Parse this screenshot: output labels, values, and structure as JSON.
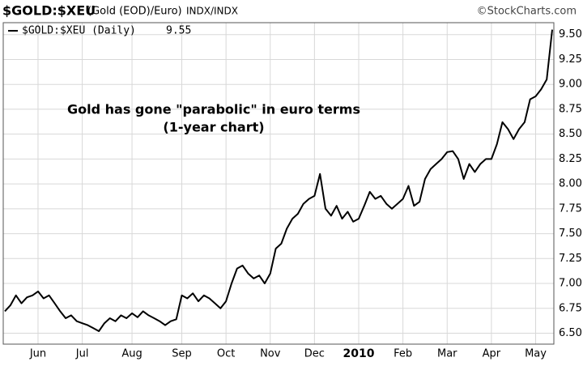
{
  "chart_data": {
    "type": "line",
    "title": "$GOLD:$XEU",
    "subtitle": "(Gold (EOD)/Euro)",
    "exchange": "INDX/INDX",
    "source": "©StockCharts.com",
    "annotation": [
      "Gold has gone \"parabolic\" in euro terms",
      "(1-year chart)"
    ],
    "categories": [
      null,
      null,
      null,
      null,
      null,
      null,
      "Jun",
      null,
      null,
      null,
      null,
      null,
      null,
      null,
      "Jul",
      null,
      null,
      null,
      null,
      null,
      null,
      null,
      null,
      "Aug",
      null,
      null,
      null,
      null,
      null,
      null,
      null,
      null,
      "Sep",
      null,
      null,
      null,
      null,
      null,
      null,
      null,
      "Oct",
      null,
      null,
      null,
      null,
      null,
      null,
      null,
      "Nov",
      null,
      null,
      null,
      null,
      null,
      null,
      null,
      "Dec",
      null,
      null,
      null,
      null,
      null,
      null,
      null,
      "2010",
      null,
      null,
      null,
      null,
      null,
      null,
      null,
      "Feb",
      null,
      null,
      null,
      null,
      null,
      null,
      null,
      "Mar",
      null,
      null,
      null,
      null,
      null,
      null,
      null,
      "Apr",
      null,
      null,
      null,
      null,
      null,
      null,
      null,
      "May",
      null,
      null,
      null
    ],
    "series": [
      {
        "name": "$GOLD:$XEU (Daily)",
        "color": "#000000",
        "values": [
          6.72,
          6.78,
          6.88,
          6.8,
          6.86,
          6.88,
          6.92,
          6.85,
          6.88,
          6.8,
          6.72,
          6.65,
          6.68,
          6.62,
          6.6,
          6.58,
          6.55,
          6.52,
          6.6,
          6.65,
          6.62,
          6.68,
          6.65,
          6.7,
          6.66,
          6.72,
          6.68,
          6.65,
          6.62,
          6.58,
          6.62,
          6.64,
          6.88,
          6.85,
          6.9,
          6.82,
          6.88,
          6.85,
          6.8,
          6.75,
          6.82,
          7.0,
          7.15,
          7.18,
          7.1,
          7.05,
          7.08,
          7.0,
          7.1,
          7.35,
          7.4,
          7.55,
          7.65,
          7.7,
          7.8,
          7.85,
          7.88,
          8.1,
          7.75,
          7.68,
          7.78,
          7.65,
          7.72,
          7.62,
          7.65,
          7.78,
          7.92,
          7.85,
          7.88,
          7.8,
          7.75,
          7.8,
          7.85,
          7.98,
          7.78,
          7.82,
          8.05,
          8.15,
          8.2,
          8.25,
          8.32,
          8.33,
          8.25,
          8.05,
          8.2,
          8.12,
          8.2,
          8.25,
          8.25,
          8.4,
          8.62,
          8.55,
          8.45,
          8.55,
          8.62,
          8.85,
          8.88,
          8.95,
          9.05,
          9.55
        ]
      }
    ],
    "ylim": [
      6.39,
      9.62
    ],
    "yticks": [
      {
        "value": 6.5,
        "label": "6.50"
      },
      {
        "value": 6.75,
        "label": "6.75"
      },
      {
        "value": 7.0,
        "label": "7.00"
      },
      {
        "value": 7.25,
        "label": "7.25"
      },
      {
        "value": 7.5,
        "label": "7.50"
      },
      {
        "value": 7.75,
        "label": "7.75"
      },
      {
        "value": 8.0,
        "label": "8.00"
      },
      {
        "value": 8.25,
        "label": "8.25"
      },
      {
        "value": 8.5,
        "label": "8.50"
      },
      {
        "value": 8.75,
        "label": "8.75"
      },
      {
        "value": 9.0,
        "label": "9.00"
      },
      {
        "value": 9.25,
        "label": "9.25"
      },
      {
        "value": 9.5,
        "label": "9.50"
      }
    ],
    "grid": true
  }
}
